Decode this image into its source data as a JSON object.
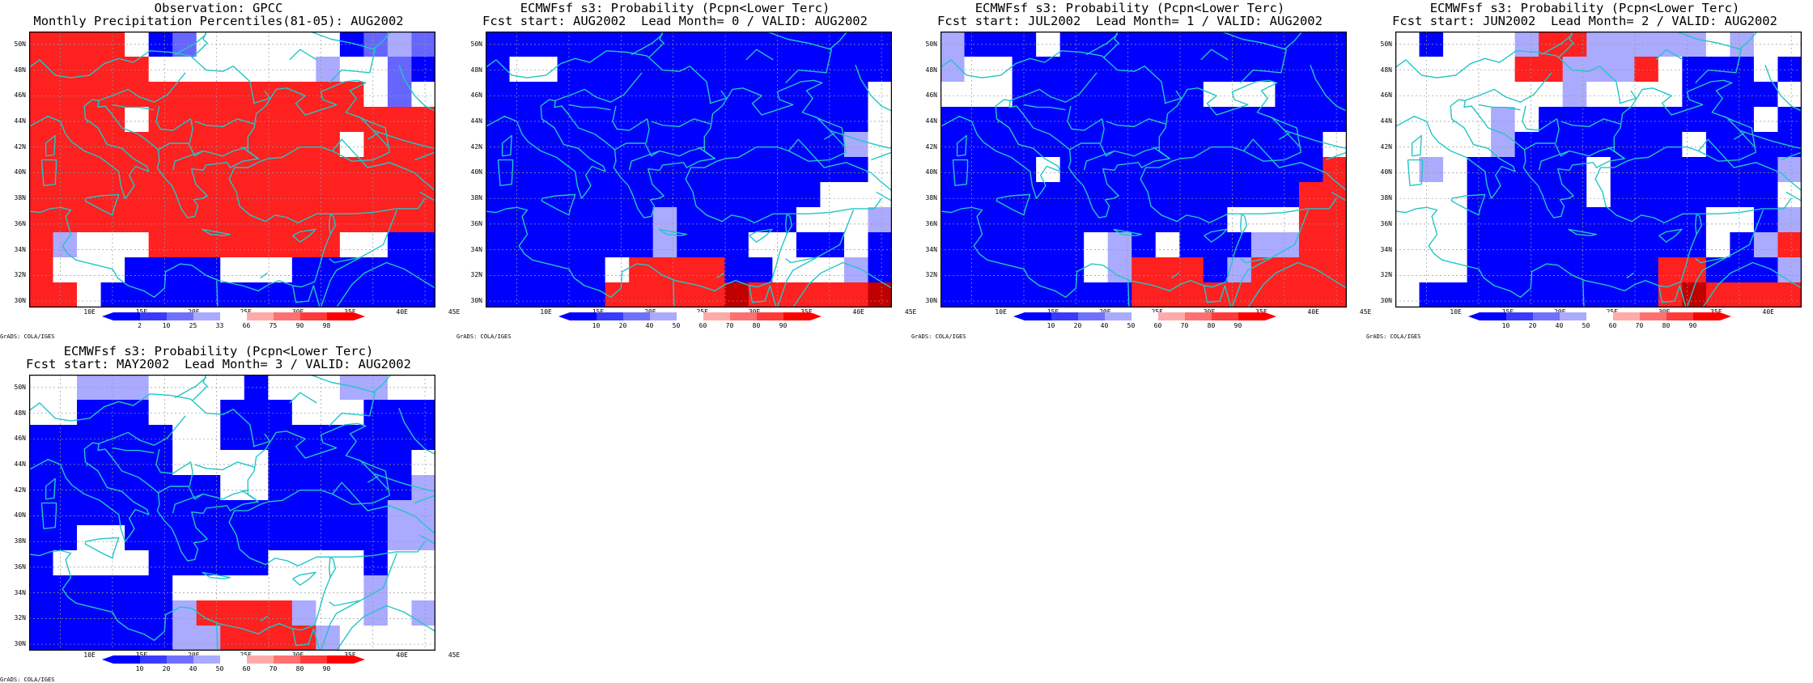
{
  "palette": {
    "blue": "#0000ff",
    "light_blue": "#6666ff",
    "pale_blue": "#aaaaff",
    "white": "#ffffff",
    "pale_red": "#ffaaaa",
    "light_red": "#ff6666",
    "red": "#ff2020",
    "dark_red": "#c00000",
    "coast": "#22c6c6",
    "grid": "#9a9a9a"
  },
  "axes": {
    "lat_labels": [
      "50N",
      "48N",
      "46N",
      "44N",
      "42N",
      "40N",
      "38N",
      "36N",
      "34N",
      "32N",
      "30N"
    ],
    "lon_labels": [
      "10E",
      "15E",
      "20E",
      "25E",
      "30E",
      "35E",
      "40E",
      "45E"
    ],
    "lon_range": [
      7,
      46
    ],
    "lat_range": [
      29.5,
      51
    ]
  },
  "panels": [
    {
      "id": "obs",
      "title_line1": "Observation: GPCC",
      "title_line2": "Monthly Precipitation Percentiles(81-05): AUG2002",
      "colorbar_labels": [
        "2",
        "10",
        "25",
        "33",
        "66",
        "75",
        "90",
        "98"
      ],
      "credit": "GrADS: COLA/IGES",
      "grid": [
        "RRRRWBLWWWWWWBLPL",
        "RRRRRWWWWWWWPWWLB",
        "RRRRRRRRRRRRRRWLW",
        "RRRRWRRRRRRRRRRRR",
        "RRRRRRRRRRRRRWRRR",
        "RRRRRRRRRRRRRRRRR",
        "RRRRRRRRRRRRRRRRR",
        "RRRRRRRRRRRRRRRRR",
        "RPWWWRRRRRRRRWWBB",
        "RWWWBBBBWWWBBBBBB",
        "RRWBBBBBBBBBBBBBB"
      ]
    },
    {
      "id": "lead0",
      "title_line1": "ECMWFsf s3: Probability (Pcpn<Lower Terc)",
      "title_line2": "Fcst start: AUG2002  Lead Month= 0 / VALID: AUG2002",
      "colorbar_labels": [
        "10",
        "20",
        "40",
        "50",
        "60",
        "70",
        "80",
        "90"
      ],
      "credit": "GrADS: COLA/IGES",
      "grid": [
        "BBBBBBBBBBBBBBBBB",
        "BWWBBBBBBBBBBBBBB",
        "BBBBBBBBBBBBBBBBW",
        "BBBBBBBBBBBBBBBBW",
        "BBBBBBBBBBBBBBBPW",
        "BBBBBBBBBBBBBBBBW",
        "BBBBBBBBBBBBBBWWW",
        "BBBBBBBPBBBBBWWWP",
        "BBBBBBBPBBBWWBBWB",
        "BBBBBWRRRRBBWWWPB",
        "BBBBBRRRRRDRRRRRD"
      ]
    },
    {
      "id": "lead1",
      "title_line1": "ECMWFsf s3: Probability (Pcpn<Lower Terc)",
      "title_line2": "Fcst start: JUL2002  Lead Month= 1 / VALID: AUG2002",
      "colorbar_labels": [
        "10",
        "20",
        "40",
        "50",
        "60",
        "70",
        "80",
        "90"
      ],
      "credit": "GrADS: COLA/IGES",
      "grid": [
        "PBBBWBBBBBBBBBBBB",
        "PWWBBBBBBBBBBBBBB",
        "WWWBBBBBBBBWWWBBB",
        "BBBBBBBBBBBBBBBBB",
        "BBBBBBBBBBBBBBBBW",
        "BBBBWBBBBBBBBBBBR",
        "BBBBBBBBBBBBBBBRR",
        "BBBBBBBBBBBBWWWRR",
        "BBBBBBWPBWBBBPPRR",
        "BBBBBBWPRRRBPRRRR",
        "BBBBBBBBRRRRRRRRR"
      ]
    },
    {
      "id": "lead2",
      "title_line1": "ECMWFsf s3: Probability (Pcpn<Lower Terc)",
      "title_line2": "Fcst start: JUN2002  Lead Month= 2 / VALID: AUG2002",
      "colorbar_labels": [
        "10",
        "20",
        "40",
        "50",
        "60",
        "70",
        "80",
        "90"
      ],
      "credit": "GrADS: COLA/IGES",
      "grid": [
        "WBWWWPRRPPPPPWPWW",
        "WWWWWRRPPPRWBBBWB",
        "WWWWWWWPWWWWBBBBW",
        "WWWWPWBBBBBBBBBWB",
        "WWWWPBBBBBBBWBBBB",
        "WPWBBBBBWBBBBBBBP",
        "WWWBBBBBWBBBBBBBW",
        "WWWBBBBBBBBBBWWBP",
        "WWWBBBBBBBBBBWBPR",
        "WWWBBBBBBBBRRBBBP",
        "WBBBBBBBBBBRDRRRR"
      ]
    },
    {
      "id": "lead3",
      "title_line1": "ECMWFsf s3: Probability (Pcpn<Lower Terc)",
      "title_line2": "Fcst start: MAY2002  Lead Month= 3 / VALID: AUG2002",
      "colorbar_labels": [
        "10",
        "20",
        "40",
        "50",
        "60",
        "70",
        "80",
        "90"
      ],
      "credit": "GrADS: COLA/IGES",
      "grid": [
        "WWPPPWWWWBWWWPPWW",
        "WWBBBWWWBBBWWWBBB",
        "BBBBBBWWBBBBBBBBB",
        "BBBBBBWWWWBBBBBBW",
        "BBBBBBBBWWBBBBBBP",
        "BBBBBBBBBBBBBBBPP",
        "BBWWBBBBBBBBBBBPP",
        "BWWWWBBBBBWWWWBWW",
        "BBBBBBWWWWWWWWPWW",
        "BBBBBBPRRRRPWWPWP",
        "BBBBBBPPRRRRPWWWW"
      ]
    }
  ]
}
